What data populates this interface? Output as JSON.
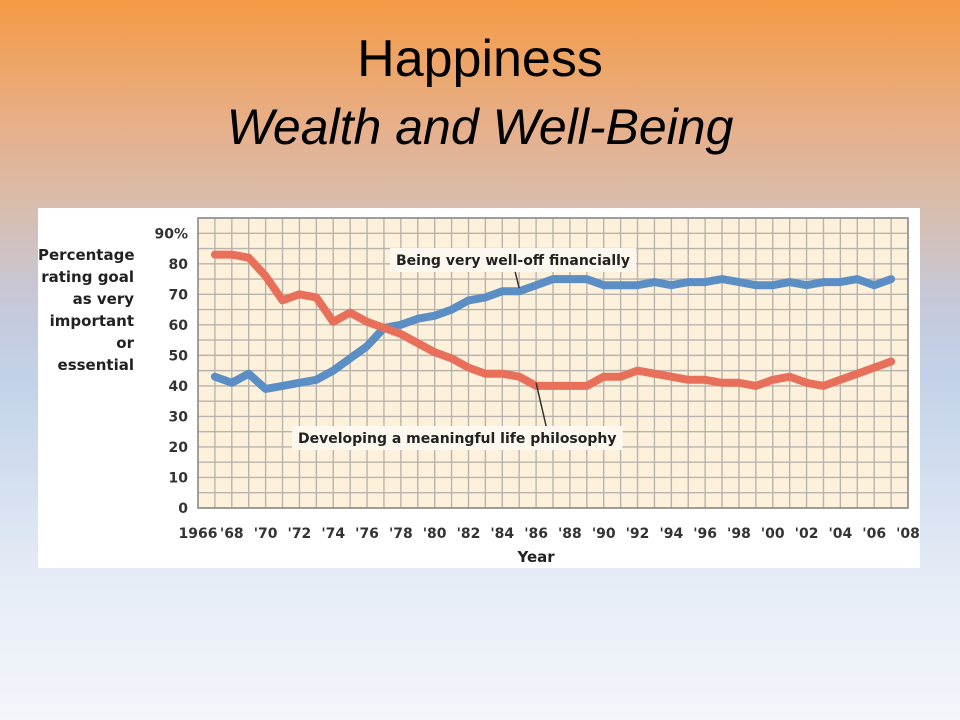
{
  "slide": {
    "title": "Happiness",
    "subtitle": "Wealth and Well-Being"
  },
  "chart_data": {
    "type": "line",
    "ylabel_lines": [
      "Percentage",
      "rating goal",
      "as very",
      "important",
      "or",
      "essential"
    ],
    "xlabel": "Year",
    "y_ticks": [
      "90%",
      "80",
      "70",
      "60",
      "50",
      "40",
      "30",
      "20",
      "10",
      "0"
    ],
    "x_ticks": [
      "1966",
      "'68",
      "'70",
      "'72",
      "'74",
      "'76",
      "'78",
      "'80",
      "'82",
      "'84",
      "'86",
      "'88",
      "'90",
      "'92",
      "'94",
      "'96",
      "'98",
      "'00",
      "'02",
      "'04",
      "'06",
      "'08"
    ],
    "xlim": [
      1966,
      2008
    ],
    "ylim": [
      0,
      95
    ],
    "grid": true,
    "colors": {
      "financial": "#5b8ec4",
      "philosophy": "#e8705b",
      "plot_background": "#fdf1dc",
      "grid": "#b8b4ad"
    },
    "x": [
      1967,
      1968,
      1969,
      1970,
      1971,
      1972,
      1973,
      1974,
      1975,
      1976,
      1977,
      1978,
      1979,
      1980,
      1981,
      1982,
      1983,
      1984,
      1985,
      1986,
      1987,
      1988,
      1989,
      1990,
      1991,
      1992,
      1993,
      1994,
      1995,
      1996,
      1997,
      1998,
      1999,
      2000,
      2001,
      2002,
      2003,
      2004,
      2005,
      2006,
      2007
    ],
    "series": [
      {
        "name": "Being very well-off financially",
        "key": "financial",
        "values": [
          43,
          41,
          44,
          39,
          40,
          41,
          42,
          45,
          49,
          53,
          59,
          60,
          62,
          63,
          65,
          68,
          69,
          71,
          71,
          73,
          75,
          75,
          75,
          73,
          73,
          73,
          74,
          73,
          74,
          74,
          75,
          74,
          73,
          73,
          74,
          73,
          74,
          74,
          75,
          73,
          75
        ]
      },
      {
        "name": "Developing a meaningful life philosophy",
        "key": "philosophy",
        "values": [
          83,
          83,
          82,
          76,
          68,
          70,
          69,
          61,
          64,
          61,
          59,
          57,
          54,
          51,
          49,
          46,
          44,
          44,
          43,
          40,
          40,
          40,
          40,
          43,
          43,
          45,
          44,
          43,
          42,
          42,
          41,
          41,
          40,
          42,
          43,
          41,
          40,
          42,
          44,
          46,
          48
        ]
      }
    ],
    "annotations": [
      {
        "text": "Being very well-off financially",
        "target": "financial",
        "x": 1985,
        "y": 72
      },
      {
        "text": "Developing a meaningful life philosophy",
        "target": "philosophy",
        "x": 1986,
        "y": 41
      }
    ]
  }
}
